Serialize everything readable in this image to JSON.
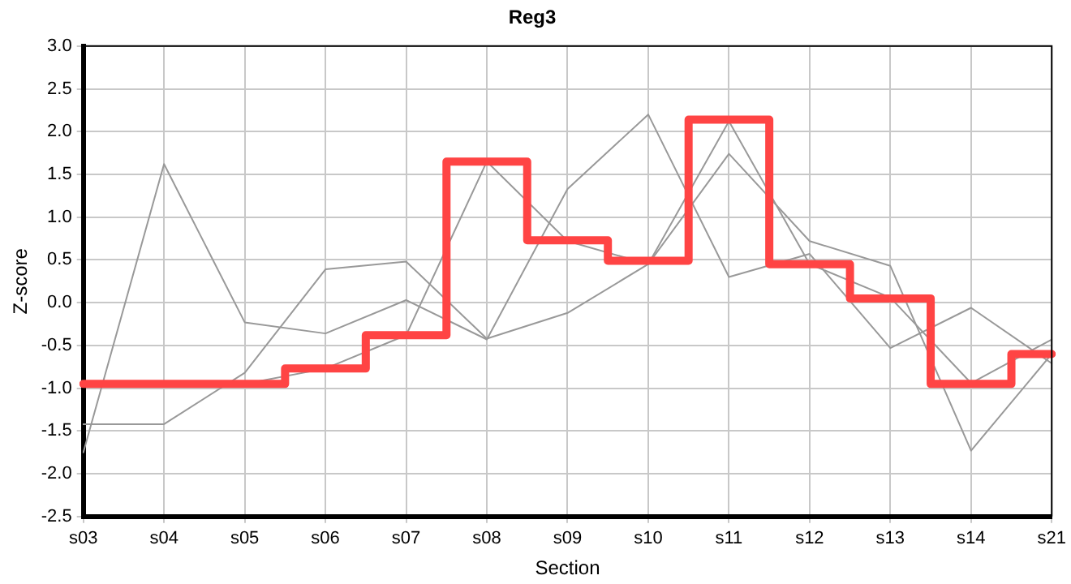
{
  "chart_data": {
    "type": "line",
    "title": "Reg3",
    "xlabel": "Section",
    "ylabel": "Z-score",
    "categories": [
      "s03",
      "s04",
      "s05",
      "s06",
      "s07",
      "s08",
      "s09",
      "s10",
      "s11",
      "s12",
      "s13",
      "s14",
      "s21"
    ],
    "series": [
      {
        "color": "#999999",
        "values": [
          -1.75,
          1.62,
          -0.23,
          -0.36,
          0.03,
          -0.43,
          1.33,
          2.2,
          0.3,
          0.57,
          -0.53,
          -0.06,
          -0.71
        ]
      },
      {
        "color": "#999999",
        "values": [
          -1.42,
          -1.42,
          -0.82,
          0.39,
          0.48,
          -0.42,
          -0.12,
          0.45,
          1.74,
          0.72,
          0.43,
          -1.73,
          -0.6
        ]
      },
      {
        "color": "#999999",
        "values": [
          -0.95,
          -0.95,
          -0.95,
          -0.77,
          -0.38,
          1.65,
          0.72,
          0.45,
          2.12,
          0.45,
          0.06,
          -0.94,
          -0.43
        ]
      },
      {
        "type": "step",
        "color": "#ff4444",
        "values": [
          -0.95,
          -0.95,
          -0.95,
          -0.77,
          -0.38,
          1.65,
          0.73,
          0.49,
          2.14,
          0.45,
          0.05,
          -0.95,
          -0.6
        ]
      }
    ],
    "ylim": [
      -2.5,
      3
    ],
    "yticks": [
      {
        "value": -2.5,
        "label": "-2.5"
      },
      {
        "value": -2,
        "label": "-2.0"
      },
      {
        "value": -1.5,
        "label": "-1.5"
      },
      {
        "value": -1,
        "label": "-1.0"
      },
      {
        "value": -0.5,
        "label": "-0.5"
      },
      {
        "value": 0,
        "label": "0.0"
      },
      {
        "value": 0.5,
        "label": "0.5"
      },
      {
        "value": 1,
        "label": "1.0"
      },
      {
        "value": 1.5,
        "label": "1.5"
      },
      {
        "value": 2,
        "label": "2.0"
      },
      {
        "value": 2.5,
        "label": "2.5"
      },
      {
        "value": 3,
        "label": "3.0"
      }
    ],
    "grid": true,
    "legend": false,
    "marker": "none"
  }
}
